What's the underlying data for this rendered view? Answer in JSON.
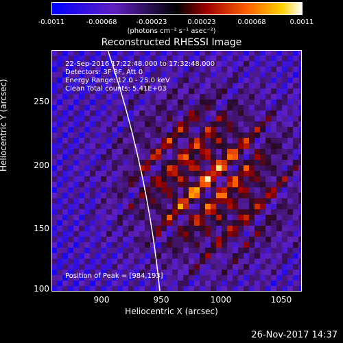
{
  "colorbar": {
    "ticks": [
      "-0.0011",
      "-0.00068",
      "-0.00023",
      "0.00023",
      "0.00068",
      "0.0011"
    ],
    "units": "(photons cm⁻² s⁻¹ asec⁻²)"
  },
  "title": "Reconstructed RHESSI Image",
  "info": {
    "time_range": "22-Sep-2016 17:22:48.000 to 17:32:48.000",
    "detectors": "Detectors: 3F 8F, Att 0",
    "energy": "Energy Range: 12.0 - 25.0 keV",
    "clean": "Clean     Total counts: 5.41E+03"
  },
  "peak": "Position of Peak = [984,193]",
  "axes": {
    "xlabel": "Heliocentric X (arcsec)",
    "ylabel": "Heliocentric Y (arcsec)",
    "xticks": [
      "900",
      "950",
      "1000",
      "1050"
    ],
    "yticks": [
      "250",
      "200",
      "150",
      "100"
    ]
  },
  "timestamp": "26-Nov-2017 14:37"
}
